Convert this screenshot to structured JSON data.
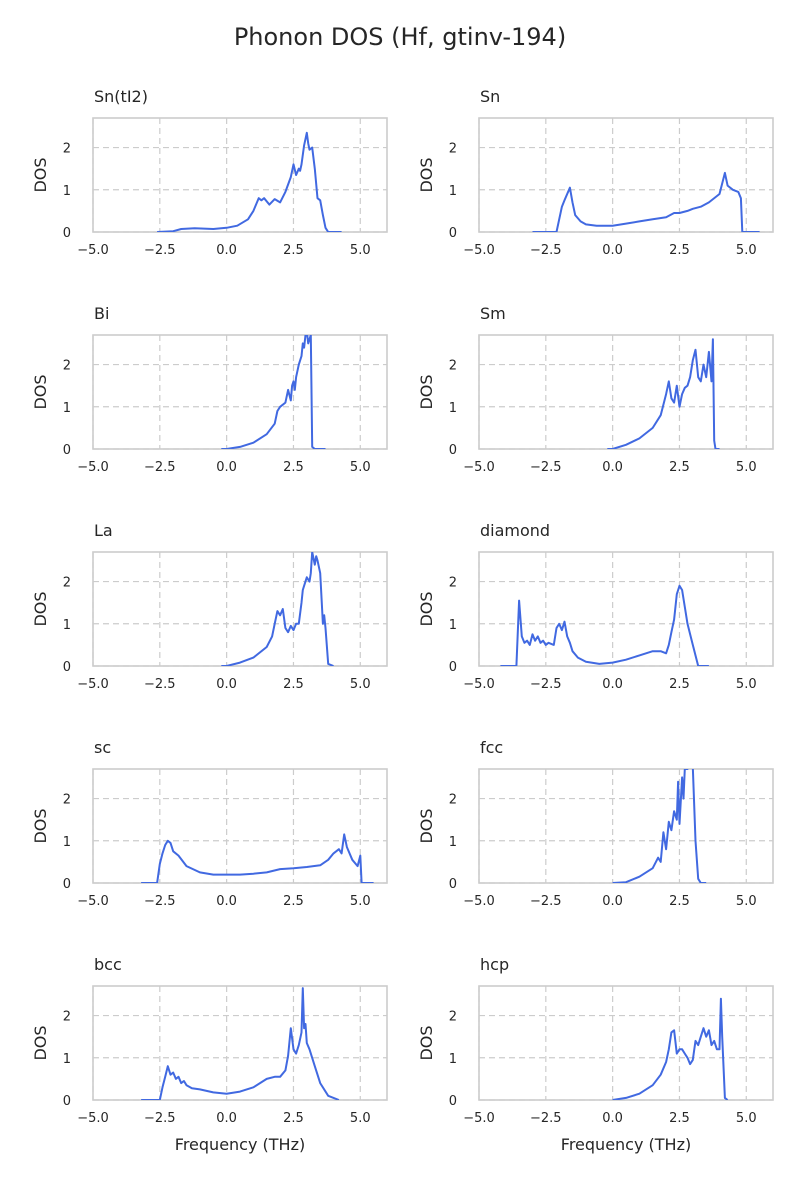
{
  "figure": {
    "title": "Phonon DOS (Hf, gtinv-194)"
  },
  "style": {
    "line_color": "#4169e1"
  },
  "chart_data": [
    {
      "type": "line",
      "title": "Sn(tI2)",
      "xlabel": "",
      "ylabel": "DOS",
      "xlim": [
        -5.0,
        6.0
      ],
      "ylim": [
        0,
        2.7
      ],
      "xticks": [
        "−5.0",
        "−2.5",
        "0.0",
        "2.5",
        "5.0"
      ],
      "yticks": [
        "0",
        "1",
        "2"
      ],
      "x": [
        -2.6,
        -2.0,
        -1.7,
        -1.2,
        -0.5,
        0.0,
        0.4,
        0.8,
        1.0,
        1.2,
        1.3,
        1.4,
        1.6,
        1.8,
        2.0,
        2.2,
        2.4,
        2.5,
        2.6,
        2.7,
        2.75,
        2.8,
        2.9,
        3.0,
        3.05,
        3.1,
        3.2,
        3.3,
        3.4,
        3.5,
        3.6,
        3.7,
        3.8,
        4.3
      ],
      "y": [
        0.0,
        0.02,
        0.07,
        0.09,
        0.07,
        0.1,
        0.15,
        0.3,
        0.5,
        0.8,
        0.75,
        0.8,
        0.65,
        0.78,
        0.7,
        0.95,
        1.3,
        1.6,
        1.35,
        1.5,
        1.45,
        1.6,
        2.05,
        2.35,
        2.1,
        1.95,
        2.0,
        1.5,
        0.8,
        0.75,
        0.4,
        0.1,
        0.0,
        0.0
      ]
    },
    {
      "type": "line",
      "title": "Sn",
      "xlabel": "",
      "ylabel": "DOS",
      "xlim": [
        -5.0,
        6.0
      ],
      "ylim": [
        0,
        2.7
      ],
      "xticks": [
        "−5.0",
        "−2.5",
        "0.0",
        "2.5",
        "5.0"
      ],
      "yticks": [
        "0",
        "1",
        "2"
      ],
      "x": [
        -3.0,
        -2.1,
        -2.0,
        -1.9,
        -1.8,
        -1.6,
        -1.5,
        -1.4,
        -1.2,
        -1.0,
        -0.6,
        0.0,
        0.5,
        1.0,
        1.5,
        2.0,
        2.3,
        2.5,
        2.8,
        3.0,
        3.3,
        3.6,
        4.0,
        4.2,
        4.3,
        4.5,
        4.7,
        4.8,
        4.85,
        5.0,
        5.5
      ],
      "y": [
        0.0,
        0.0,
        0.3,
        0.6,
        0.75,
        1.05,
        0.7,
        0.4,
        0.25,
        0.18,
        0.15,
        0.15,
        0.2,
        0.25,
        0.3,
        0.35,
        0.45,
        0.45,
        0.5,
        0.55,
        0.6,
        0.7,
        0.9,
        1.4,
        1.1,
        1.0,
        0.95,
        0.8,
        0.0,
        0.0,
        0.0
      ]
    },
    {
      "type": "line",
      "title": "Bi",
      "xlabel": "",
      "ylabel": "DOS",
      "xlim": [
        -5.0,
        6.0
      ],
      "ylim": [
        0,
        2.7
      ],
      "xticks": [
        "−5.0",
        "−2.5",
        "0.0",
        "2.5",
        "5.0"
      ],
      "yticks": [
        "0",
        "1",
        "2"
      ],
      "x": [
        -0.2,
        0.0,
        0.5,
        1.0,
        1.5,
        1.8,
        1.9,
        2.0,
        2.1,
        2.2,
        2.3,
        2.4,
        2.45,
        2.5,
        2.55,
        2.6,
        2.7,
        2.8,
        2.85,
        2.9,
        2.95,
        3.0,
        3.05,
        3.1,
        3.15,
        3.2,
        3.3,
        3.7
      ],
      "y": [
        0.0,
        0.0,
        0.05,
        0.15,
        0.35,
        0.6,
        0.9,
        1.0,
        1.05,
        1.1,
        1.4,
        1.15,
        1.5,
        1.6,
        1.4,
        1.7,
        2.0,
        2.2,
        2.5,
        2.4,
        2.7,
        2.8,
        2.5,
        2.6,
        2.7,
        0.05,
        0.0,
        0.0
      ]
    },
    {
      "type": "line",
      "title": "Sm",
      "xlabel": "",
      "ylabel": "DOS",
      "xlim": [
        -5.0,
        6.0
      ],
      "ylim": [
        0,
        2.7
      ],
      "xticks": [
        "−5.0",
        "−2.5",
        "0.0",
        "2.5",
        "5.0"
      ],
      "yticks": [
        "0",
        "1",
        "2"
      ],
      "x": [
        -0.2,
        0.0,
        0.5,
        1.0,
        1.5,
        1.8,
        2.0,
        2.1,
        2.2,
        2.3,
        2.4,
        2.5,
        2.6,
        2.7,
        2.8,
        2.9,
        3.0,
        3.1,
        3.2,
        3.3,
        3.4,
        3.5,
        3.6,
        3.7,
        3.75,
        3.8,
        3.85,
        3.9,
        4.0
      ],
      "y": [
        0.0,
        0.0,
        0.1,
        0.25,
        0.5,
        0.8,
        1.3,
        1.6,
        1.2,
        1.1,
        1.5,
        1.0,
        1.3,
        1.45,
        1.5,
        1.7,
        2.1,
        2.35,
        1.7,
        1.6,
        2.0,
        1.7,
        2.3,
        1.6,
        2.6,
        0.2,
        0.0,
        0.0,
        0.0
      ]
    },
    {
      "type": "line",
      "title": "La",
      "xlabel": "",
      "ylabel": "DOS",
      "xlim": [
        -5.0,
        6.0
      ],
      "ylim": [
        0,
        2.7
      ],
      "xticks": [
        "−5.0",
        "−2.5",
        "0.0",
        "2.5",
        "5.0"
      ],
      "yticks": [
        "0",
        "1",
        "2"
      ],
      "x": [
        -0.2,
        0.0,
        0.5,
        1.0,
        1.5,
        1.7,
        1.8,
        1.9,
        2.0,
        2.1,
        2.2,
        2.3,
        2.4,
        2.5,
        2.6,
        2.7,
        2.8,
        2.85,
        2.9,
        3.0,
        3.1,
        3.15,
        3.2,
        3.3,
        3.35,
        3.4,
        3.5,
        3.6,
        3.65,
        3.7,
        3.8,
        4.0
      ],
      "y": [
        0.0,
        0.0,
        0.08,
        0.2,
        0.45,
        0.7,
        1.0,
        1.3,
        1.2,
        1.35,
        0.9,
        0.8,
        0.95,
        0.85,
        1.0,
        1.0,
        1.5,
        1.8,
        1.9,
        2.1,
        2.0,
        2.2,
        2.7,
        2.4,
        2.6,
        2.5,
        2.2,
        1.0,
        1.2,
        0.9,
        0.05,
        0.0
      ]
    },
    {
      "type": "line",
      "title": "diamond",
      "xlabel": "",
      "ylabel": "DOS",
      "xlim": [
        -5.0,
        6.0
      ],
      "ylim": [
        0,
        2.7
      ],
      "xticks": [
        "−5.0",
        "−2.5",
        "0.0",
        "2.5",
        "5.0"
      ],
      "yticks": [
        "0",
        "1",
        "2"
      ],
      "x": [
        -4.2,
        -3.6,
        -3.5,
        -3.4,
        -3.3,
        -3.2,
        -3.1,
        -3.0,
        -2.9,
        -2.8,
        -2.7,
        -2.6,
        -2.5,
        -2.4,
        -2.2,
        -2.1,
        -2.0,
        -1.9,
        -1.8,
        -1.7,
        -1.6,
        -1.5,
        -1.3,
        -1.0,
        -0.5,
        0.0,
        0.5,
        1.0,
        1.5,
        1.8,
        2.0,
        2.1,
        2.2,
        2.3,
        2.4,
        2.5,
        2.6,
        2.7,
        2.8,
        3.0,
        3.2,
        3.6
      ],
      "y": [
        0.0,
        0.0,
        1.55,
        0.7,
        0.55,
        0.6,
        0.5,
        0.75,
        0.6,
        0.7,
        0.55,
        0.6,
        0.5,
        0.55,
        0.5,
        0.9,
        1.0,
        0.85,
        1.05,
        0.7,
        0.55,
        0.35,
        0.2,
        0.1,
        0.05,
        0.08,
        0.15,
        0.25,
        0.35,
        0.35,
        0.3,
        0.5,
        0.8,
        1.1,
        1.7,
        1.9,
        1.8,
        1.4,
        1.0,
        0.5,
        0.0,
        0.0
      ]
    },
    {
      "type": "line",
      "title": "sc",
      "xlabel": "",
      "ylabel": "DOS",
      "xlim": [
        -5.0,
        6.0
      ],
      "ylim": [
        0,
        2.7
      ],
      "xticks": [
        "−5.0",
        "−2.5",
        "0.0",
        "2.5",
        "5.0"
      ],
      "yticks": [
        "0",
        "1",
        "2"
      ],
      "x": [
        -3.2,
        -2.6,
        -2.5,
        -2.4,
        -2.3,
        -2.2,
        -2.1,
        -2.0,
        -1.8,
        -1.5,
        -1.0,
        -0.5,
        0.0,
        0.5,
        1.0,
        1.5,
        2.0,
        2.5,
        3.0,
        3.5,
        3.8,
        4.0,
        4.2,
        4.3,
        4.4,
        4.5,
        4.7,
        4.9,
        5.0,
        5.05,
        5.1,
        5.5
      ],
      "y": [
        0.0,
        0.0,
        0.45,
        0.7,
        0.9,
        1.0,
        0.95,
        0.75,
        0.65,
        0.4,
        0.25,
        0.2,
        0.2,
        0.2,
        0.22,
        0.25,
        0.33,
        0.35,
        0.38,
        0.42,
        0.55,
        0.7,
        0.8,
        0.7,
        1.15,
        0.85,
        0.55,
        0.4,
        0.65,
        0.0,
        0.0,
        0.0
      ]
    },
    {
      "type": "line",
      "title": "fcc",
      "xlabel": "",
      "ylabel": "DOS",
      "xlim": [
        -5.0,
        6.0
      ],
      "ylim": [
        0,
        2.7
      ],
      "xticks": [
        "−5.0",
        "−2.5",
        "0.0",
        "2.5",
        "5.0"
      ],
      "yticks": [
        "0",
        "1",
        "2"
      ],
      "x": [
        0.0,
        0.5,
        1.0,
        1.5,
        1.7,
        1.8,
        1.9,
        2.0,
        2.1,
        2.2,
        2.3,
        2.4,
        2.45,
        2.5,
        2.6,
        2.65,
        2.7,
        2.8,
        2.9,
        3.0,
        3.1,
        3.2,
        3.3,
        3.4,
        3.5
      ],
      "y": [
        0.0,
        0.02,
        0.15,
        0.35,
        0.6,
        0.5,
        1.2,
        0.8,
        1.45,
        1.25,
        1.7,
        1.5,
        2.4,
        1.4,
        2.5,
        2.0,
        2.7,
        2.7,
        2.8,
        2.75,
        1.0,
        0.1,
        0.0,
        0.0,
        0.0
      ]
    },
    {
      "type": "line",
      "title": "bcc",
      "xlabel": "Frequency (THz)",
      "ylabel": "DOS",
      "xlim": [
        -5.0,
        6.0
      ],
      "ylim": [
        0,
        2.7
      ],
      "xticks": [
        "−5.0",
        "−2.5",
        "0.0",
        "2.5",
        "5.0"
      ],
      "yticks": [
        "0",
        "1",
        "2"
      ],
      "x": [
        -3.2,
        -2.5,
        -2.4,
        -2.3,
        -2.2,
        -2.1,
        -2.0,
        -1.9,
        -1.8,
        -1.7,
        -1.6,
        -1.5,
        -1.3,
        -1.0,
        -0.5,
        0.0,
        0.5,
        1.0,
        1.5,
        1.8,
        2.0,
        2.2,
        2.3,
        2.4,
        2.5,
        2.6,
        2.7,
        2.8,
        2.85,
        2.9,
        2.95,
        3.0,
        3.1,
        3.3,
        3.5,
        3.8,
        4.2
      ],
      "y": [
        0.0,
        0.0,
        0.3,
        0.55,
        0.8,
        0.6,
        0.65,
        0.5,
        0.55,
        0.4,
        0.45,
        0.35,
        0.28,
        0.25,
        0.18,
        0.15,
        0.2,
        0.3,
        0.5,
        0.55,
        0.55,
        0.7,
        1.05,
        1.7,
        1.2,
        1.1,
        1.3,
        1.6,
        2.65,
        1.7,
        1.8,
        1.35,
        1.2,
        0.8,
        0.4,
        0.1,
        0.0
      ]
    },
    {
      "type": "line",
      "title": "hcp",
      "xlabel": "Frequency (THz)",
      "ylabel": "DOS",
      "xlim": [
        -5.0,
        6.0
      ],
      "ylim": [
        0,
        2.7
      ],
      "xticks": [
        "−5.0",
        "−2.5",
        "0.0",
        "2.5",
        "5.0"
      ],
      "yticks": [
        "0",
        "1",
        "2"
      ],
      "x": [
        0.0,
        0.5,
        1.0,
        1.5,
        1.8,
        2.0,
        2.1,
        2.2,
        2.3,
        2.4,
        2.5,
        2.6,
        2.7,
        2.8,
        2.9,
        3.0,
        3.1,
        3.2,
        3.3,
        3.4,
        3.5,
        3.6,
        3.7,
        3.8,
        3.9,
        4.0,
        4.05,
        4.1,
        4.2,
        4.3
      ],
      "y": [
        0.0,
        0.05,
        0.15,
        0.35,
        0.6,
        0.9,
        1.2,
        1.6,
        1.65,
        1.1,
        1.2,
        1.2,
        1.1,
        1.0,
        0.85,
        0.95,
        1.4,
        1.3,
        1.5,
        1.7,
        1.5,
        1.65,
        1.3,
        1.4,
        1.2,
        1.2,
        2.4,
        1.5,
        0.05,
        0.0
      ]
    }
  ]
}
